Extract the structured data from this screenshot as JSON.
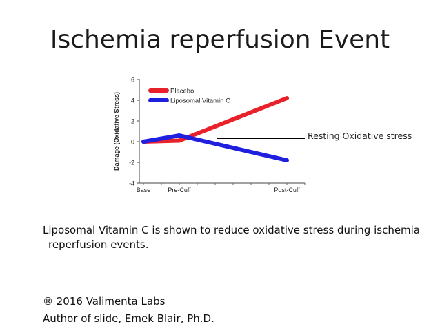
{
  "slide": {
    "title": "Ischemia reperfusion Event",
    "annotation": "Resting Oxidative stress",
    "description": "Liposomal Vitamin C is shown to reduce oxidative stress during ischemia reperfusion events.",
    "copyright": "® 2016 Valimenta Labs",
    "author": "Author of slide, Emek Blair, Ph.D."
  },
  "chart_data": {
    "type": "line",
    "title": "",
    "xlabel": "",
    "ylabel": "Damage (Oxidative Stress)",
    "categories": [
      "Base",
      "Pre-Cuff",
      "Post-Cuff"
    ],
    "x_positions": [
      0,
      1,
      4
    ],
    "ylim": [
      -4,
      6
    ],
    "yticks": [
      -4,
      -2,
      0,
      2,
      4,
      6
    ],
    "legend_position": "top-left",
    "grid": false,
    "series": [
      {
        "name": "Placebo",
        "color": "#e8212b",
        "values": [
          0,
          0.1,
          4.2
        ]
      },
      {
        "name": "Liposomal Vitamin C",
        "color": "#1f1fe0",
        "values": [
          0,
          0.6,
          -1.8
        ]
      }
    ]
  }
}
